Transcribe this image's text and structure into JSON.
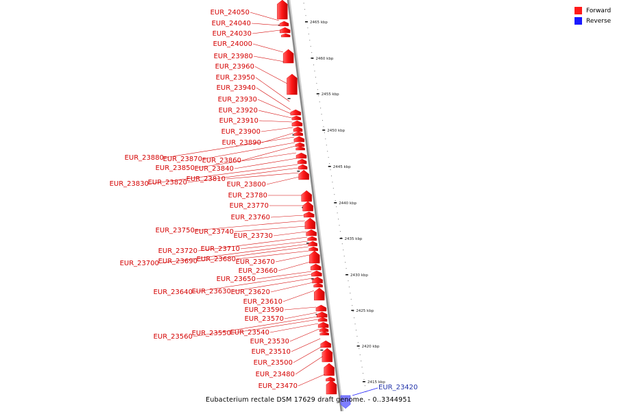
{
  "legend": {
    "forward_label": "Forward",
    "reverse_label": "Reverse",
    "forward_color": "#ff1a1a",
    "reverse_color": "#1a1aff"
  },
  "caption": "Eubacterium rectale DSM 17629 draft genome. - 0..3344951",
  "scale_unit": "kbp",
  "ticks": [
    2465,
    2460,
    2455,
    2450,
    2445,
    2440,
    2435,
    2430,
    2425,
    2420,
    2415
  ],
  "genes": [
    {
      "name": "EUR_24050",
      "strand": "forward"
    },
    {
      "name": "EUR_24040",
      "strand": "forward"
    },
    {
      "name": "EUR_24030",
      "strand": "forward"
    },
    {
      "name": "EUR_24000",
      "strand": "forward"
    },
    {
      "name": "EUR_23980",
      "strand": "forward"
    },
    {
      "name": "EUR_23960",
      "strand": "forward"
    },
    {
      "name": "EUR_23950",
      "strand": "forward"
    },
    {
      "name": "EUR_23940",
      "strand": "forward"
    },
    {
      "name": "EUR_23930",
      "strand": "forward"
    },
    {
      "name": "EUR_23920",
      "strand": "forward"
    },
    {
      "name": "EUR_23910",
      "strand": "forward"
    },
    {
      "name": "EUR_23900",
      "strand": "forward"
    },
    {
      "name": "EUR_23890",
      "strand": "forward"
    },
    {
      "name": "EUR_23880",
      "strand": "forward"
    },
    {
      "name": "EUR_23870",
      "strand": "forward"
    },
    {
      "name": "EUR_23860",
      "strand": "forward"
    },
    {
      "name": "EUR_23850",
      "strand": "forward"
    },
    {
      "name": "EUR_23840",
      "strand": "forward"
    },
    {
      "name": "EUR_23830",
      "strand": "forward"
    },
    {
      "name": "EUR_23820",
      "strand": "forward"
    },
    {
      "name": "EUR_23810",
      "strand": "forward"
    },
    {
      "name": "EUR_23800",
      "strand": "forward"
    },
    {
      "name": "EUR_23780",
      "strand": "forward"
    },
    {
      "name": "EUR_23770",
      "strand": "forward"
    },
    {
      "name": "EUR_23760",
      "strand": "forward"
    },
    {
      "name": "EUR_23750",
      "strand": "forward"
    },
    {
      "name": "EUR_23740",
      "strand": "forward"
    },
    {
      "name": "EUR_23730",
      "strand": "forward"
    },
    {
      "name": "EUR_23720",
      "strand": "forward"
    },
    {
      "name": "EUR_23710",
      "strand": "forward"
    },
    {
      "name": "EUR_23700",
      "strand": "forward"
    },
    {
      "name": "EUR_23690",
      "strand": "forward"
    },
    {
      "name": "EUR_23680",
      "strand": "forward"
    },
    {
      "name": "EUR_23670",
      "strand": "forward"
    },
    {
      "name": "EUR_23660",
      "strand": "forward"
    },
    {
      "name": "EUR_23650",
      "strand": "forward"
    },
    {
      "name": "EUR_23640",
      "strand": "forward"
    },
    {
      "name": "EUR_23630",
      "strand": "forward"
    },
    {
      "name": "EUR_23620",
      "strand": "forward"
    },
    {
      "name": "EUR_23610",
      "strand": "forward"
    },
    {
      "name": "EUR_23590",
      "strand": "forward"
    },
    {
      "name": "EUR_23570",
      "strand": "forward"
    },
    {
      "name": "EUR_23560",
      "strand": "forward"
    },
    {
      "name": "EUR_23550",
      "strand": "forward"
    },
    {
      "name": "EUR_23540",
      "strand": "forward"
    },
    {
      "name": "EUR_23530",
      "strand": "forward"
    },
    {
      "name": "EUR_23510",
      "strand": "forward"
    },
    {
      "name": "EUR_23500",
      "strand": "forward"
    },
    {
      "name": "EUR_23480",
      "strand": "forward"
    },
    {
      "name": "EUR_23470",
      "strand": "forward"
    },
    {
      "name": "EUR_23420",
      "strand": "reverse"
    }
  ]
}
